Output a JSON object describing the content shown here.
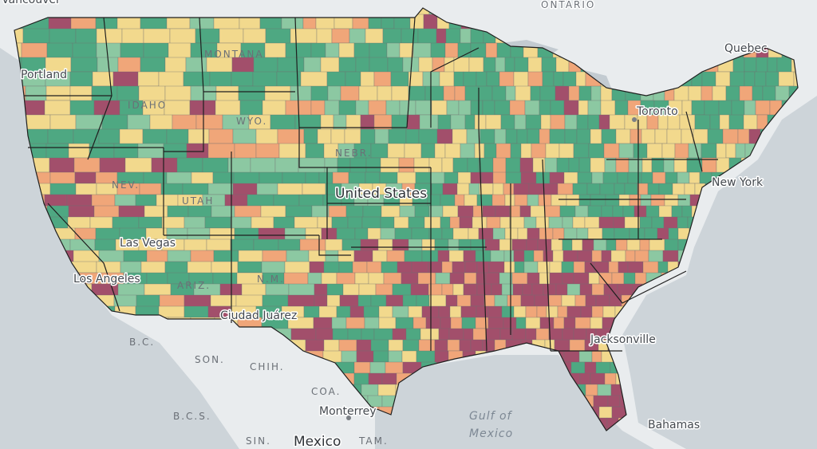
{
  "map": {
    "colors": {
      "water": "#c8d0d6",
      "land": "#eef0f1",
      "very_low": "#4ea882",
      "low": "#8cc8a2",
      "moderate": "#f2d98d",
      "high": "#f0a679",
      "very_high": "#a24f6b",
      "state_border": "#1f1f1f"
    },
    "labels": [
      {
        "id": "vancouver",
        "text": "Vancouver",
        "kind": "city"
      },
      {
        "id": "ontario",
        "text": "ONTARIO",
        "kind": "region"
      },
      {
        "id": "quebec",
        "text": "Quebec",
        "kind": "city"
      },
      {
        "id": "toronto",
        "text": "Toronto",
        "kind": "city"
      },
      {
        "id": "portland",
        "text": "Portland",
        "kind": "city"
      },
      {
        "id": "montana",
        "text": "MONTANA",
        "kind": "region"
      },
      {
        "id": "idaho",
        "text": "IDAHO",
        "kind": "region"
      },
      {
        "id": "wyo",
        "text": "WYO.",
        "kind": "region"
      },
      {
        "id": "nebr",
        "text": "NEBR.",
        "kind": "region"
      },
      {
        "id": "nev",
        "text": "NEV.",
        "kind": "region"
      },
      {
        "id": "utah",
        "text": "UTAH",
        "kind": "region"
      },
      {
        "id": "united_states",
        "text": "United States",
        "kind": "country"
      },
      {
        "id": "new_york",
        "text": "New York",
        "kind": "city"
      },
      {
        "id": "las_vegas",
        "text": "Las Vegas",
        "kind": "city"
      },
      {
        "id": "los_angeles",
        "text": "Los Angeles",
        "kind": "city"
      },
      {
        "id": "ariz",
        "text": "ARIZ.",
        "kind": "region"
      },
      {
        "id": "nm",
        "text": "N.M.",
        "kind": "region"
      },
      {
        "id": "ciudad_juarez",
        "text": "Ciudad Juárez",
        "kind": "city"
      },
      {
        "id": "bc",
        "text": "B.C.",
        "kind": "region"
      },
      {
        "id": "son",
        "text": "SON.",
        "kind": "region"
      },
      {
        "id": "chih",
        "text": "CHIH.",
        "kind": "region"
      },
      {
        "id": "coa",
        "text": "COA.",
        "kind": "region"
      },
      {
        "id": "bcs",
        "text": "B.C.S.",
        "kind": "region"
      },
      {
        "id": "monterrey",
        "text": "Monterrey",
        "kind": "city"
      },
      {
        "id": "gulf1",
        "text": "Gulf of",
        "kind": "sea"
      },
      {
        "id": "gulf2",
        "text": "Mexico",
        "kind": "sea"
      },
      {
        "id": "jacksonville",
        "text": "Jacksonville",
        "kind": "city"
      },
      {
        "id": "bahamas",
        "text": "Bahamas",
        "kind": "city"
      },
      {
        "id": "sin",
        "text": "SIN.",
        "kind": "region"
      },
      {
        "id": "mexico",
        "text": "Mexico",
        "kind": "country"
      },
      {
        "id": "tam",
        "text": "TAM.",
        "kind": "region"
      }
    ]
  }
}
